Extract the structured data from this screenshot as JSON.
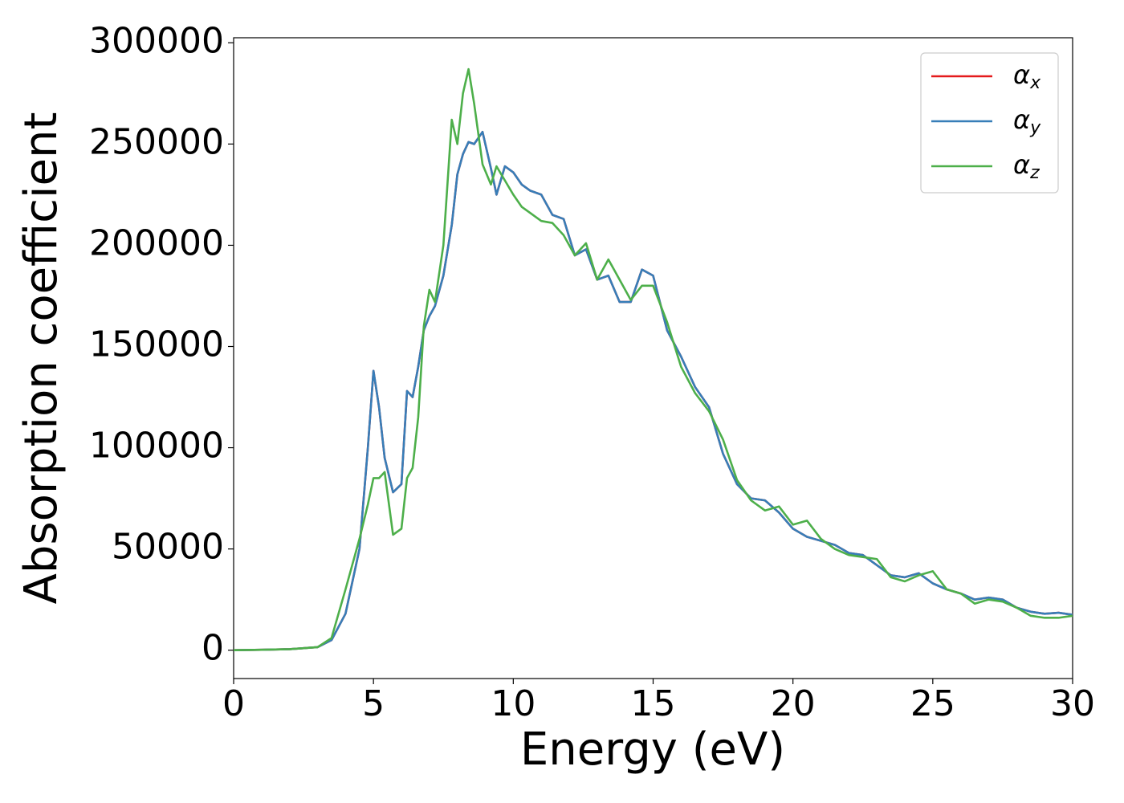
{
  "chart_data": {
    "type": "line",
    "xlabel": "Energy (eV)",
    "ylabel": "Absorption coefficient",
    "x": [
      0,
      1,
      2,
      3,
      3.5,
      4,
      4.5,
      4.8,
      5,
      5.2,
      5.4,
      5.7,
      6,
      6.2,
      6.4,
      6.6,
      6.8,
      7,
      7.2,
      7.5,
      7.8,
      8,
      8.2,
      8.4,
      8.6,
      8.9,
      9.2,
      9.4,
      9.7,
      10,
      10.3,
      10.6,
      11,
      11.4,
      11.8,
      12.2,
      12.6,
      13,
      13.4,
      13.8,
      14.2,
      14.6,
      15,
      15.5,
      16,
      16.5,
      17,
      17.5,
      18,
      18.5,
      19,
      19.5,
      20,
      20.5,
      21,
      21.5,
      22,
      22.5,
      23,
      23.5,
      24,
      24.5,
      25,
      25.5,
      26,
      26.5,
      27,
      27.5,
      28,
      28.5,
      29,
      29.5,
      30
    ],
    "series": [
      {
        "name": "αx",
        "color": "#e41a1c",
        "values": [
          0,
          200,
          500,
          1500,
          5000,
          18000,
          50000,
          100000,
          138000,
          120000,
          95000,
          78000,
          82000,
          128000,
          125000,
          140000,
          158000,
          165000,
          170000,
          185000,
          210000,
          235000,
          245000,
          251000,
          250000,
          256000,
          238000,
          225000,
          239000,
          236000,
          230000,
          227000,
          225000,
          215000,
          213000,
          195000,
          198000,
          183000,
          185000,
          172000,
          172000,
          188000,
          185000,
          158000,
          145000,
          130000,
          120000,
          97000,
          82000,
          75000,
          74000,
          68000,
          60000,
          56000,
          54000,
          52000,
          48000,
          47000,
          42000,
          37000,
          36000,
          38000,
          33000,
          30000,
          28000,
          25000,
          26000,
          25000,
          21000,
          19000,
          18000,
          18500,
          17500
        ]
      },
      {
        "name": "αy",
        "color": "#377eb8",
        "values": [
          0,
          200,
          500,
          1500,
          5000,
          18000,
          50000,
          100000,
          138000,
          120000,
          95000,
          78000,
          82000,
          128000,
          125000,
          140000,
          158000,
          165000,
          170000,
          185000,
          210000,
          235000,
          245000,
          251000,
          250000,
          256000,
          238000,
          225000,
          239000,
          236000,
          230000,
          227000,
          225000,
          215000,
          213000,
          195000,
          198000,
          183000,
          185000,
          172000,
          172000,
          188000,
          185000,
          158000,
          145000,
          130000,
          120000,
          97000,
          82000,
          75000,
          74000,
          68000,
          60000,
          56000,
          54000,
          52000,
          48000,
          47000,
          42000,
          37000,
          36000,
          38000,
          33000,
          30000,
          28000,
          25000,
          26000,
          25000,
          21000,
          19000,
          18000,
          18500,
          17500
        ]
      },
      {
        "name": "αz",
        "color": "#4daf4a",
        "values": [
          0,
          200,
          500,
          1500,
          6000,
          30000,
          55000,
          72000,
          85000,
          85000,
          88000,
          57000,
          60000,
          85000,
          90000,
          115000,
          160000,
          178000,
          172000,
          200000,
          262000,
          250000,
          275000,
          287000,
          270000,
          240000,
          230000,
          239000,
          232000,
          225000,
          219000,
          216000,
          212000,
          211000,
          205000,
          195000,
          201000,
          183000,
          193000,
          183000,
          173000,
          180000,
          180000,
          162000,
          140000,
          127000,
          118000,
          104000,
          84000,
          74000,
          69000,
          71000,
          62000,
          64000,
          55000,
          50000,
          47000,
          46000,
          45000,
          36000,
          34000,
          37000,
          39000,
          30000,
          28000,
          23000,
          25000,
          24000,
          21000,
          17000,
          16000,
          16000,
          17000
        ]
      }
    ],
    "xlim": [
      0,
      30
    ],
    "xticks": [
      0,
      5,
      10,
      15,
      20,
      25,
      30
    ],
    "ylim": [
      -14000,
      302500
    ],
    "yticks": [
      0,
      50000,
      100000,
      150000,
      200000,
      250000,
      300000
    ],
    "grid": false,
    "legend": "upper right"
  }
}
